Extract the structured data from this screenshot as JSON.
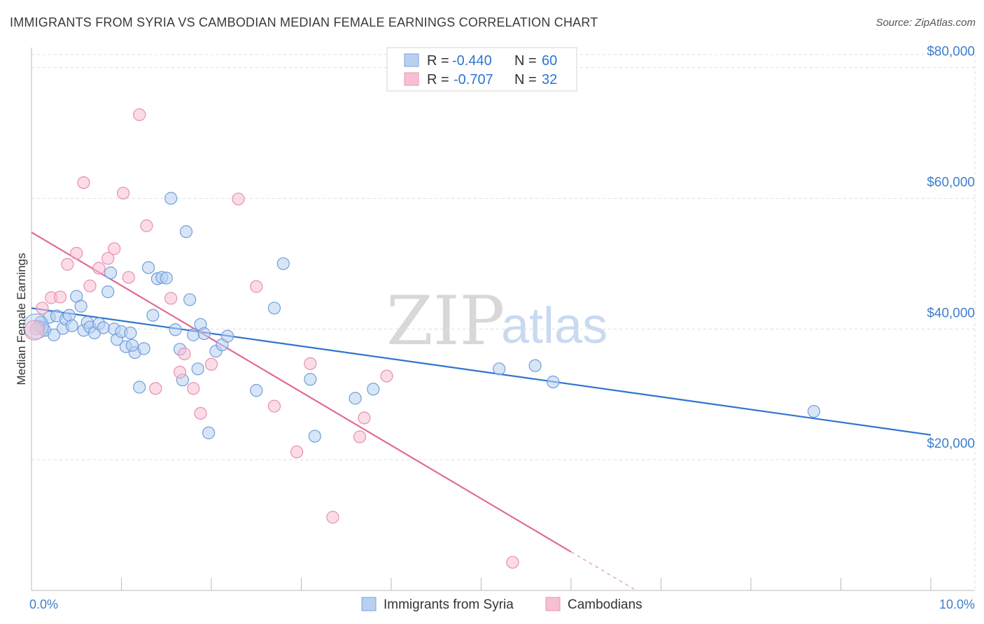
{
  "title": "IMMIGRANTS FROM SYRIA VS CAMBODIAN MEDIAN FEMALE EARNINGS CORRELATION CHART",
  "source": "Source: ZipAtlas.com",
  "watermark": {
    "zip": "ZIP",
    "atlas": "atlas"
  },
  "colors": {
    "blue": "#2f74d0",
    "blue_fill": "#b8d0f0",
    "pink": "#e06a96",
    "pink_fill": "#f7c0d2",
    "grid": "#dddddd",
    "axis_label": "#3d7fcc"
  },
  "legend": {
    "rows": [
      {
        "r_label": "R =",
        "r_value": "-0.440",
        "n_label": "N =",
        "n_value": "60"
      },
      {
        "r_label": "R =",
        "r_value": "-0.707",
        "n_label": "N =",
        "n_value": "32"
      }
    ]
  },
  "chart_data": {
    "type": "scatter",
    "title": "IMMIGRANTS FROM SYRIA VS CAMBODIAN MEDIAN FEMALE EARNINGS CORRELATION CHART",
    "xlabel": "",
    "ylabel": "Median Female Earnings",
    "xlim": [
      0,
      10
    ],
    "ylim": [
      0,
      82000
    ],
    "x_tick_labels": [
      {
        "value": 0,
        "label": "0.0%"
      },
      {
        "value": 10,
        "label": "10.0%"
      }
    ],
    "y_ticks": [
      {
        "value": 20000,
        "label": "$20,000"
      },
      {
        "value": 40000,
        "label": "$40,000"
      },
      {
        "value": 60000,
        "label": "$60,000"
      },
      {
        "value": 80000,
        "label": "$80,000"
      }
    ],
    "series": [
      {
        "name": "Immigrants from Syria",
        "color": "#2f74d0",
        "points": [
          [
            0.1,
            41000
          ],
          [
            0.12,
            40200
          ],
          [
            0.15,
            39800
          ],
          [
            0.2,
            41800
          ],
          [
            0.25,
            39100
          ],
          [
            0.28,
            42000
          ],
          [
            0.35,
            40100
          ],
          [
            0.38,
            41500
          ],
          [
            0.42,
            42100
          ],
          [
            0.45,
            40500
          ],
          [
            0.5,
            45000
          ],
          [
            0.55,
            43500
          ],
          [
            0.58,
            39800
          ],
          [
            0.62,
            41000
          ],
          [
            0.65,
            40300
          ],
          [
            0.7,
            39400
          ],
          [
            0.75,
            40800
          ],
          [
            0.8,
            40200
          ],
          [
            0.85,
            45700
          ],
          [
            0.88,
            48600
          ],
          [
            0.92,
            40000
          ],
          [
            0.95,
            38400
          ],
          [
            1.0,
            39600
          ],
          [
            1.05,
            37300
          ],
          [
            1.1,
            39400
          ],
          [
            1.15,
            36400
          ],
          [
            1.2,
            31100
          ],
          [
            1.25,
            37000
          ],
          [
            1.3,
            49400
          ],
          [
            1.35,
            42100
          ],
          [
            1.4,
            47700
          ],
          [
            1.45,
            47900
          ],
          [
            1.5,
            47800
          ],
          [
            1.55,
            60000
          ],
          [
            1.6,
            39900
          ],
          [
            1.65,
            36900
          ],
          [
            1.68,
            32200
          ],
          [
            1.72,
            54900
          ],
          [
            1.76,
            44500
          ],
          [
            1.8,
            39100
          ],
          [
            1.85,
            33900
          ],
          [
            1.88,
            40700
          ],
          [
            1.92,
            39300
          ],
          [
            1.97,
            24100
          ],
          [
            2.05,
            36600
          ],
          [
            2.12,
            37600
          ],
          [
            2.18,
            38900
          ],
          [
            2.5,
            30600
          ],
          [
            2.7,
            43200
          ],
          [
            2.8,
            50000
          ],
          [
            3.1,
            32300
          ],
          [
            3.15,
            23600
          ],
          [
            3.6,
            29400
          ],
          [
            3.8,
            30800
          ],
          [
            5.2,
            33900
          ],
          [
            5.6,
            34400
          ],
          [
            5.8,
            31900
          ],
          [
            8.7,
            27400
          ],
          [
            0.08,
            40400
          ],
          [
            1.12,
            37500
          ]
        ]
      },
      {
        "name": "Cambodians",
        "color": "#e06a96",
        "points": [
          [
            0.05,
            40000
          ],
          [
            0.12,
            43200
          ],
          [
            0.22,
            44800
          ],
          [
            0.32,
            44900
          ],
          [
            0.4,
            49900
          ],
          [
            0.5,
            51600
          ],
          [
            0.58,
            62400
          ],
          [
            0.65,
            46600
          ],
          [
            0.75,
            49300
          ],
          [
            0.85,
            50800
          ],
          [
            0.92,
            52300
          ],
          [
            1.02,
            60800
          ],
          [
            1.08,
            47900
          ],
          [
            1.2,
            72800
          ],
          [
            1.28,
            55800
          ],
          [
            1.38,
            30900
          ],
          [
            1.55,
            44700
          ],
          [
            1.65,
            33400
          ],
          [
            1.7,
            36200
          ],
          [
            1.8,
            30900
          ],
          [
            1.88,
            27100
          ],
          [
            2.0,
            34600
          ],
          [
            2.3,
            59900
          ],
          [
            2.5,
            46500
          ],
          [
            2.7,
            28200
          ],
          [
            2.95,
            21200
          ],
          [
            3.1,
            34700
          ],
          [
            3.35,
            11200
          ],
          [
            3.65,
            23500
          ],
          [
            3.7,
            26400
          ],
          [
            3.95,
            32800
          ],
          [
            5.35,
            4300
          ]
        ]
      }
    ],
    "trend_lines": [
      {
        "series": "Immigrants from Syria",
        "from": [
          0,
          43200
        ],
        "to": [
          10,
          23800
        ]
      },
      {
        "series": "Cambodians",
        "from": [
          0,
          54800
        ],
        "to": [
          6.0,
          5900
        ],
        "dashed_to": [
          6.7,
          200
        ]
      }
    ]
  },
  "bottom_legend": [
    {
      "label": "Immigrants from Syria"
    },
    {
      "label": "Cambodians"
    }
  ]
}
